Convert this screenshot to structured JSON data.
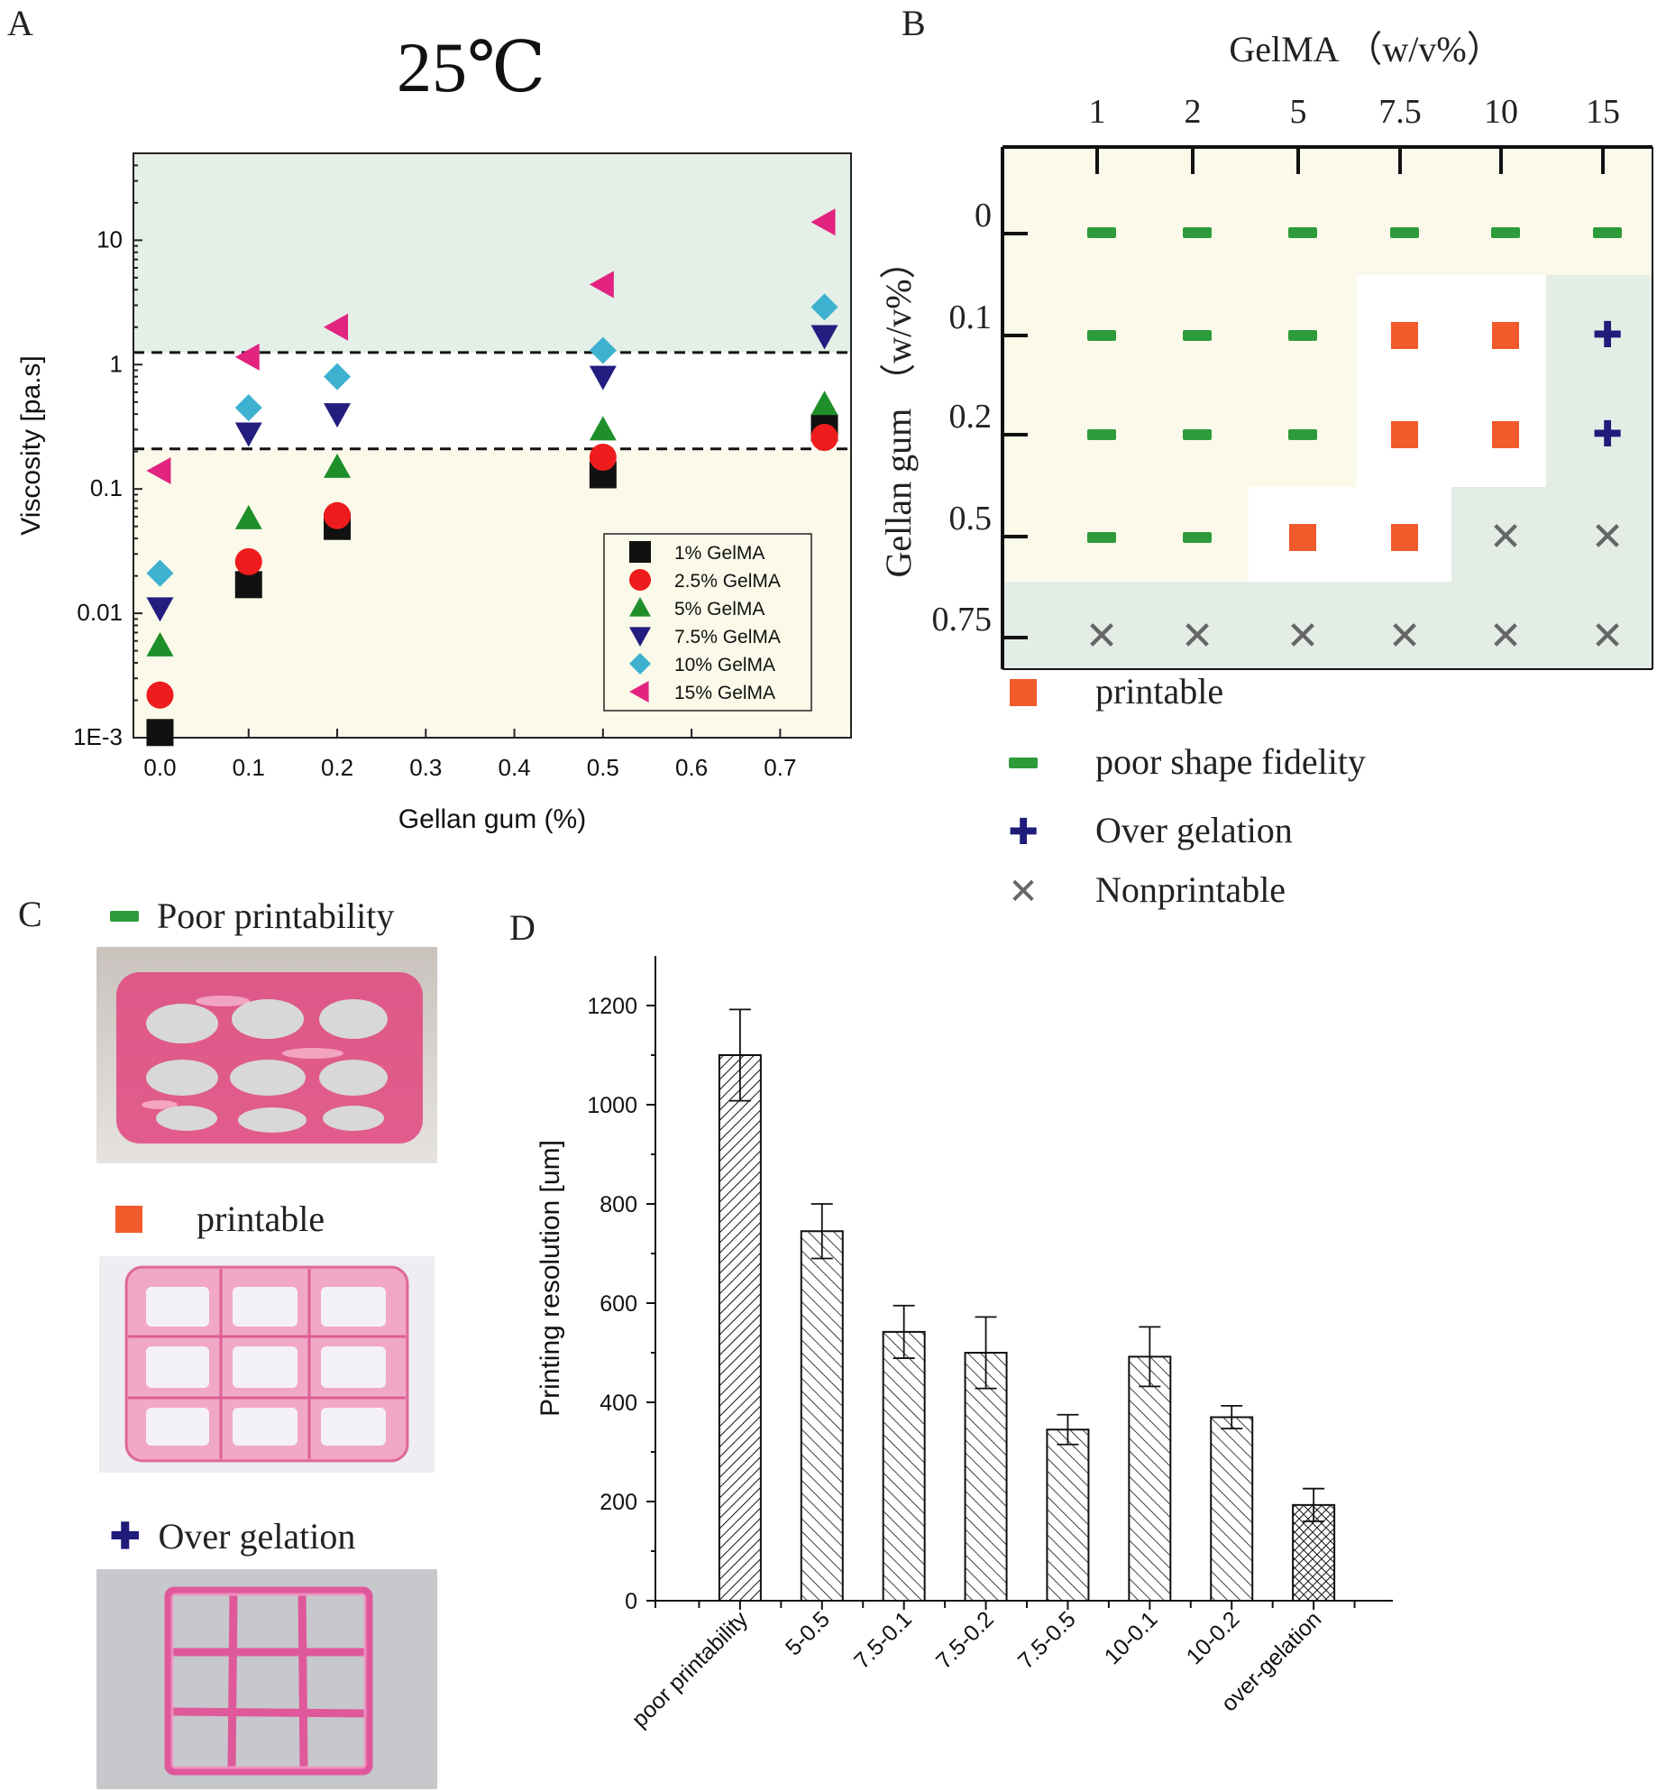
{
  "panels": {
    "a": "A",
    "b": "B",
    "c": "C",
    "d": "D"
  },
  "panel_a": {
    "header_temperature": "25℃"
  },
  "panel_b": {
    "x_title": "GelMA （w/v%）",
    "y_title": "Gellan gum （w/v%）",
    "legend": [
      {
        "symbol": "square",
        "label": "printable",
        "color": "#f15a2b"
      },
      {
        "symbol": "dash",
        "label": "poor shape fidelity",
        "color": "#2e9b3a"
      },
      {
        "symbol": "plus",
        "label": "Over gelation",
        "color": "#1f1c7a"
      },
      {
        "symbol": "cross",
        "label": "Nonprintable",
        "color": "#666666"
      }
    ]
  },
  "panel_c": {
    "items": [
      {
        "symbol": "dash",
        "label": "Poor printability",
        "color": "#2e9b3a"
      },
      {
        "symbol": "square",
        "label": "printable",
        "color": "#f15a2b"
      },
      {
        "symbol": "plus",
        "label": "Over gelation",
        "color": "#1f1c7a"
      }
    ]
  },
  "colors": {
    "zone_high": "#e3efe7",
    "zone_low": "#fbfaea",
    "zone_white": "#ffffff",
    "zone_dark": "#e4ece6",
    "black": "#111111",
    "red": "#ee1c1c",
    "green": "#1f8f2a",
    "navy": "#231d80",
    "cyan": "#3eb1d0",
    "magenta": "#e2237f"
  },
  "chart_data": [
    {
      "type": "scatter",
      "xlabel": "Gellan gum (%)",
      "ylabel": "Viscosity [pa.s]",
      "xlim": [
        -0.03,
        0.78
      ],
      "ylim": [
        0.001,
        50
      ],
      "y_scale": "log",
      "x_ticks": [
        "0.0",
        "0.1",
        "0.2",
        "0.3",
        "0.4",
        "0.5",
        "0.6",
        "0.7"
      ],
      "y_ticks": [
        {
          "value": 0.001,
          "label": "1E-3"
        },
        {
          "value": 0.01,
          "label": "0.01"
        },
        {
          "value": 0.1,
          "label": "0.1"
        },
        {
          "value": 1,
          "label": "1"
        },
        {
          "value": 10,
          "label": "10"
        }
      ],
      "thresholds": [
        1.25,
        0.21
      ],
      "legend_placement": "bottom-right",
      "series": [
        {
          "name": "1% GelMA",
          "marker": "square",
          "color": "#111111",
          "x": [
            0.0,
            0.1,
            0.2,
            0.5,
            0.75
          ],
          "y": [
            0.0011,
            0.017,
            0.05,
            0.13,
            0.31
          ]
        },
        {
          "name": "2.5% GelMA",
          "marker": "circle",
          "color": "#ee1c1c",
          "x": [
            0.0,
            0.1,
            0.2,
            0.5,
            0.75
          ],
          "y": [
            0.0022,
            0.026,
            0.061,
            0.18,
            0.26
          ]
        },
        {
          "name": "5% GelMA",
          "marker": "triangle-up",
          "color": "#1f8f2a",
          "x": [
            0.0,
            0.1,
            0.2,
            0.5,
            0.75
          ],
          "y": [
            0.0055,
            0.058,
            0.15,
            0.3,
            0.48
          ]
        },
        {
          "name": "7.5% GelMA",
          "marker": "triangle-down",
          "color": "#231d80",
          "x": [
            0.0,
            0.1,
            0.2,
            0.5,
            0.75
          ],
          "y": [
            0.011,
            0.28,
            0.4,
            0.8,
            1.7
          ]
        },
        {
          "name": "10% GelMA",
          "marker": "diamond",
          "color": "#3eb1d0",
          "x": [
            0.0,
            0.1,
            0.2,
            0.5,
            0.75
          ],
          "y": [
            0.021,
            0.45,
            0.8,
            1.3,
            2.9
          ]
        },
        {
          "name": "15% GelMA",
          "marker": "triangle-left",
          "color": "#e2237f",
          "x": [
            0.0,
            0.1,
            0.2,
            0.5,
            0.75
          ],
          "y": [
            0.14,
            1.15,
            2.0,
            4.4,
            14.0
          ]
        }
      ]
    },
    {
      "type": "table",
      "columns": [
        "1",
        "2",
        "5",
        "7.5",
        "10",
        "15"
      ],
      "rows": [
        "0",
        "0.1",
        "0.2",
        "0.5",
        "0.75"
      ],
      "cells": [
        [
          "dash",
          "dash",
          "dash",
          "dash",
          "dash",
          "dash"
        ],
        [
          "dash",
          "dash",
          "dash",
          "square",
          "square",
          "plus"
        ],
        [
          "dash",
          "dash",
          "dash",
          "square",
          "square",
          "plus"
        ],
        [
          "dash",
          "dash",
          "square",
          "square",
          "cross",
          "cross"
        ],
        [
          "cross",
          "cross",
          "cross",
          "cross",
          "cross",
          "cross"
        ]
      ]
    },
    {
      "type": "bar",
      "ylabel": "Printing resolution [um]",
      "ylim": [
        0,
        1300
      ],
      "y_ticks": [
        "0",
        "200",
        "400",
        "600",
        "800",
        "1000",
        "1200"
      ],
      "categories": [
        "poor printability",
        "5-0.5",
        "7.5-0.1",
        "7.5-0.2",
        "7.5-0.5",
        "10-0.1",
        "10-0.2",
        "over-gelation"
      ],
      "values": [
        1100,
        745,
        542,
        500,
        345,
        492,
        370,
        193
      ],
      "errors": [
        92,
        55,
        53,
        72,
        30,
        60,
        23,
        33
      ],
      "patterns": [
        "hatch-forward",
        "hatch-back",
        "hatch-back",
        "hatch-back",
        "hatch-back",
        "hatch-back",
        "hatch-back",
        "crosshatch"
      ]
    }
  ]
}
